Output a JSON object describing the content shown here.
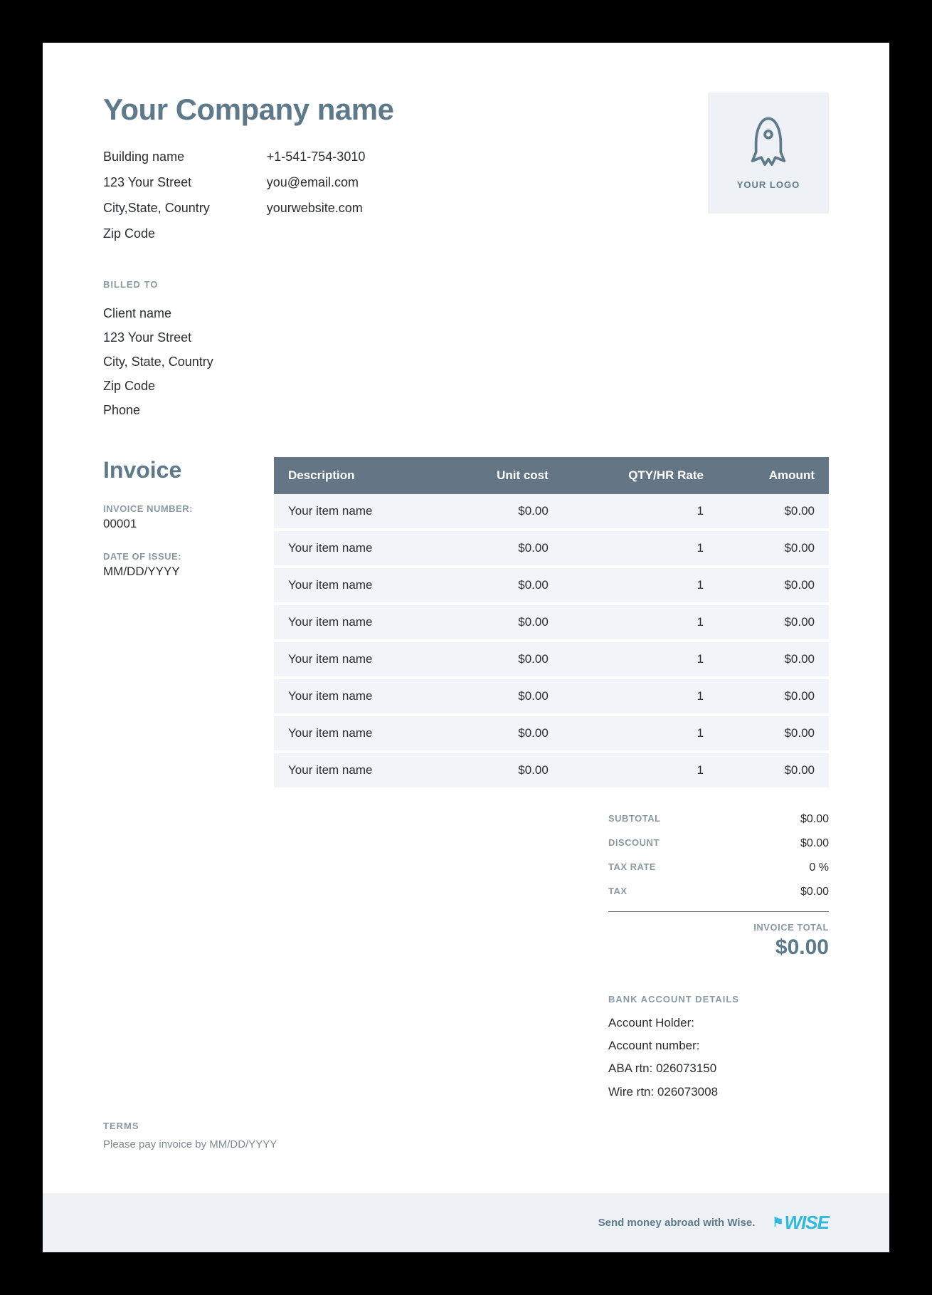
{
  "company": {
    "name": "Your Company name",
    "address": {
      "building": "Building name",
      "street": "123 Your Street",
      "region": "City,State, Country",
      "zip": "Zip Code"
    },
    "contact": {
      "phone": "+1-541-754-3010",
      "email": "you@email.com",
      "website": "yourwebsite.com"
    }
  },
  "logo": {
    "label": "YOUR LOGO"
  },
  "billed": {
    "heading": "BILLED TO",
    "name": "Client name",
    "street": "123 Your Street",
    "region": "City, State, Country",
    "zip": "Zip Code",
    "phone": "Phone"
  },
  "invoice": {
    "title": "Invoice",
    "number_label": "INVOICE NUMBER:",
    "number": "00001",
    "date_label": "DATE OF ISSUE:",
    "date": "MM/DD/YYYY"
  },
  "table": {
    "columns": [
      "Description",
      "Unit cost",
      "QTY/HR Rate",
      "Amount"
    ],
    "rows": [
      {
        "desc": "Your item name",
        "unit": "$0.00",
        "qty": "1",
        "amount": "$0.00"
      },
      {
        "desc": "Your item name",
        "unit": "$0.00",
        "qty": "1",
        "amount": "$0.00"
      },
      {
        "desc": "Your item name",
        "unit": "$0.00",
        "qty": "1",
        "amount": "$0.00"
      },
      {
        "desc": "Your item name",
        "unit": "$0.00",
        "qty": "1",
        "amount": "$0.00"
      },
      {
        "desc": "Your item name",
        "unit": "$0.00",
        "qty": "1",
        "amount": "$0.00"
      },
      {
        "desc": "Your item name",
        "unit": "$0.00",
        "qty": "1",
        "amount": "$0.00"
      },
      {
        "desc": "Your item name",
        "unit": "$0.00",
        "qty": "1",
        "amount": "$0.00"
      },
      {
        "desc": "Your item name",
        "unit": "$0.00",
        "qty": "1",
        "amount": "$0.00"
      }
    ]
  },
  "totals": {
    "subtotal_label": "SUBTOTAL",
    "subtotal": "$0.00",
    "discount_label": "DISCOUNT",
    "discount": "$0.00",
    "taxrate_label": "TAX RATE",
    "taxrate": "0 %",
    "tax_label": "TAX",
    "tax": "$0.00",
    "total_label": "INVOICE TOTAL",
    "total": "$0.00"
  },
  "bank": {
    "heading": "BANK ACCOUNT DETAILS",
    "holder": "Account Holder:",
    "number": "Account number:",
    "aba": "ABA rtn: 026073150",
    "wire": "Wire rtn: 026073008"
  },
  "terms": {
    "heading": "TERMS",
    "text": "Please pay invoice by MM/DD/YYYY"
  },
  "footer": {
    "text": "Send money abroad with Wise.",
    "brand": "WISE"
  },
  "colors": {
    "page_bg": "#ffffff",
    "outer_bg": "#000000",
    "muted_heading": "#5e7a8a",
    "label_grey": "#8a9aa5",
    "body_text": "#2a2e33",
    "table_header_bg": "#647685",
    "table_header_text": "#ffffff",
    "row_bg": "#f1f4f8",
    "logo_box_bg": "#eef2f6",
    "footer_bg": "#eef2f6",
    "wise_blue": "#2fb9e0"
  }
}
